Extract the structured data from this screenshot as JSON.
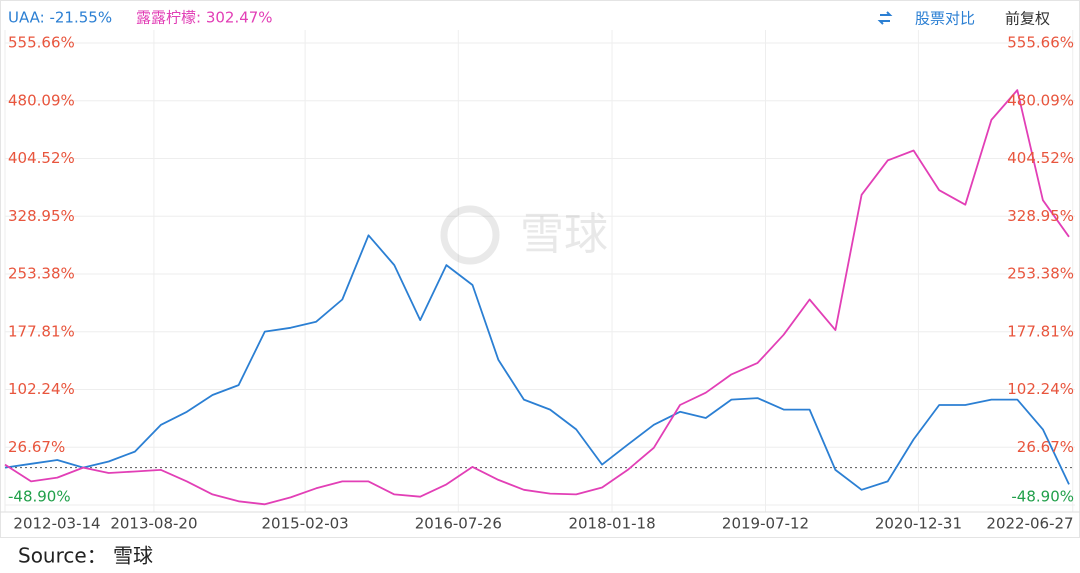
{
  "chart_data": {
    "type": "line",
    "series": [
      {
        "name": "UAA: -21.55%",
        "color": "#2b7fd3",
        "values": [
          0,
          5,
          10,
          0,
          8,
          21,
          56,
          73,
          95,
          108,
          178,
          183,
          191,
          220,
          304,
          265,
          193,
          265,
          239,
          141,
          89,
          76,
          50,
          4,
          30,
          56,
          73,
          65,
          89,
          91,
          76,
          76,
          -3,
          -29,
          -18,
          37,
          82,
          82,
          89,
          89,
          50,
          -22
        ]
      },
      {
        "name": "露露柠檬: 302.47%",
        "color": "#e23fb6",
        "values": [
          4,
          -18,
          -13,
          0,
          -7,
          -5,
          -3,
          -18,
          -35,
          -44,
          -48,
          -39,
          -27,
          -18,
          -18,
          -35,
          -38,
          -22,
          1,
          -16,
          -29,
          -34,
          -35,
          -26,
          -3,
          26,
          82,
          98,
          122,
          137,
          174,
          220,
          180,
          357,
          402,
          415,
          363,
          344,
          455,
          494,
          350,
          302
        ]
      }
    ],
    "x": [
      "2012-03-14",
      "2012-06-14",
      "2012-09-14",
      "2012-12-14",
      "2013-03-14",
      "2013-06-14",
      "2013-09-14",
      "2013-12-14",
      "2014-03-14",
      "2014-06-14",
      "2014-09-14",
      "2014-12-14",
      "2015-03-14",
      "2015-06-14",
      "2015-09-14",
      "2015-12-14",
      "2016-03-14",
      "2016-06-14",
      "2016-09-14",
      "2016-12-14",
      "2017-03-14",
      "2017-06-14",
      "2017-09-14",
      "2017-12-14",
      "2018-03-14",
      "2018-06-14",
      "2018-09-14",
      "2018-12-14",
      "2019-03-14",
      "2019-06-14",
      "2019-09-14",
      "2019-12-14",
      "2020-03-14",
      "2020-06-14",
      "2020-09-14",
      "2020-12-14",
      "2021-03-14",
      "2021-06-14",
      "2021-09-14",
      "2021-12-14",
      "2022-03-14",
      "2022-06-14"
    ],
    "xlim": [
      "2012-03-14",
      "2022-07-05"
    ],
    "xticks": [
      "2012-03-14",
      "2013-08-20",
      "2015-02-03",
      "2016-07-26",
      "2018-01-18",
      "2019-07-12",
      "2020-12-31",
      "2022-06-27"
    ],
    "ylim": [
      -48.9,
      555.66
    ],
    "yticks": [
      {
        "value": 555.66,
        "label": "555.66%"
      },
      {
        "value": 480.09,
        "label": "480.09%"
      },
      {
        "value": 404.52,
        "label": "404.52%"
      },
      {
        "value": 328.95,
        "label": "328.95%"
      },
      {
        "value": 253.38,
        "label": "253.38%"
      },
      {
        "value": 177.81,
        "label": "177.81%"
      },
      {
        "value": 102.24,
        "label": "102.24%"
      },
      {
        "value": 26.67,
        "label": "26.67%"
      },
      {
        "value": -48.9,
        "label": "-48.90%"
      }
    ],
    "baseline": 0,
    "grid": true,
    "tick_label_colors": {
      "positive": "#e8553d",
      "negative": "#22a04b"
    },
    "toolbar": {
      "compare": "股票对比",
      "adjust": "前复权"
    },
    "watermark": "雪球",
    "source": "Source：  雪球"
  }
}
